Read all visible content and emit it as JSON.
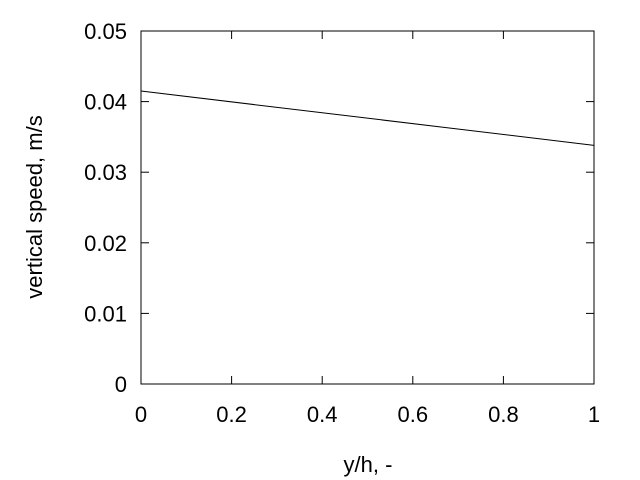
{
  "chart_data": {
    "type": "line",
    "title": "",
    "xlabel": "y/h, -",
    "ylabel": "vertical speed, m/s",
    "xlim": [
      0,
      1
    ],
    "ylim": [
      0,
      0.05
    ],
    "xticks": [
      0,
      0.2,
      0.4,
      0.6,
      0.8,
      1
    ],
    "xtick_labels": [
      "0",
      "0.2",
      "0.4",
      "0.6",
      "0.8",
      "1"
    ],
    "yticks": [
      0,
      0.01,
      0.02,
      0.03,
      0.04,
      0.05
    ],
    "ytick_labels": [
      "0",
      "0.01",
      "0.02",
      "0.03",
      "0.04",
      "0.05"
    ],
    "grid": false,
    "legend": "none",
    "series": [
      {
        "color": "#000000",
        "x": [
          0,
          1
        ],
        "y": [
          0.0415,
          0.0338
        ]
      }
    ]
  }
}
